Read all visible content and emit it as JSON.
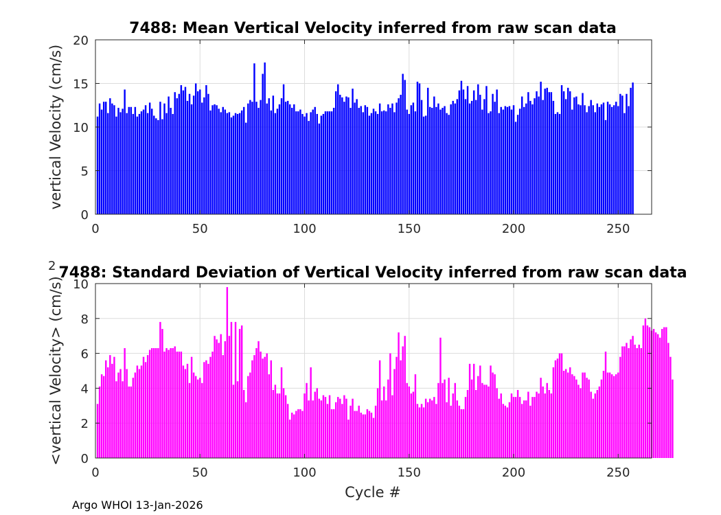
{
  "footer": "Argo WHOI 13-Jan-2026",
  "chart_data": [
    {
      "type": "bar",
      "title": "7488: Mean Vertical Velocity inferred from raw scan data",
      "xlabel": "",
      "ylabel": "vertical Velocity (cm/s)",
      "xlim": [
        0,
        266
      ],
      "ylim": [
        0,
        20
      ],
      "xticks": [
        0,
        50,
        100,
        150,
        200,
        250
      ],
      "yticks": [
        0,
        5,
        10,
        15,
        20
      ],
      "grid": true,
      "color": "#0000ff",
      "x_start": 1,
      "values": [
        11.2,
        12.7,
        12.0,
        12.9,
        12.9,
        11.6,
        13.3,
        12.7,
        12.5,
        11.2,
        12.2,
        11.7,
        12.1,
        14.3,
        11.6,
        12.3,
        12.3,
        11.5,
        12.3,
        11.2,
        11.5,
        11.8,
        12.0,
        12.5,
        11.6,
        12.8,
        12.1,
        11.3,
        11.0,
        10.8,
        12.9,
        10.9,
        12.7,
        11.6,
        13.5,
        12.2,
        11.5,
        14.0,
        13.3,
        13.8,
        14.8,
        14.2,
        14.6,
        13.0,
        13.8,
        12.6,
        13.6,
        15.0,
        14.1,
        14.3,
        12.8,
        13.4,
        14.8,
        13.8,
        11.9,
        12.5,
        12.6,
        12.5,
        12.1,
        11.7,
        12.3,
        12.0,
        11.6,
        11.7,
        11.1,
        11.3,
        11.6,
        11.5,
        11.6,
        11.9,
        12.3,
        10.5,
        12.7,
        13.1,
        12.9,
        17.3,
        12.9,
        12.2,
        13.1,
        16.1,
        17.4,
        12.7,
        13.3,
        11.9,
        13.6,
        11.6,
        12.1,
        12.6,
        13.3,
        14.9,
        12.9,
        13.0,
        12.6,
        12.2,
        12.6,
        11.8,
        11.8,
        12.0,
        11.5,
        11.2,
        11.6,
        10.7,
        11.7,
        12.0,
        12.3,
        11.5,
        10.4,
        11.3,
        11.5,
        11.8,
        11.8,
        11.8,
        11.8,
        12.2,
        14.1,
        14.9,
        13.7,
        13.4,
        12.9,
        13.5,
        13.4,
        12.2,
        14.4,
        12.8,
        13.2,
        12.2,
        12.4,
        11.7,
        12.5,
        12.3,
        11.3,
        11.6,
        12.1,
        11.8,
        11.5,
        12.7,
        11.8,
        11.9,
        11.8,
        12.6,
        12.2,
        12.7,
        11.7,
        12.8,
        13.3,
        13.7,
        16.1,
        15.4,
        12.0,
        11.5,
        12.5,
        12.8,
        11.8,
        15.2,
        15.0,
        13.1,
        11.2,
        11.3,
        14.5,
        12.3,
        12.2,
        13.5,
        12.3,
        12.7,
        12.0,
        12.2,
        12.4,
        11.6,
        11.4,
        12.6,
        13.0,
        12.7,
        13.2,
        14.2,
        15.3,
        14.3,
        13.2,
        14.7,
        12.7,
        13.0,
        14.2,
        13.1,
        14.9,
        13.7,
        12.0,
        13.2,
        14.7,
        11.6,
        11.8,
        13.8,
        12.9,
        14.3,
        11.6,
        12.3,
        12.0,
        12.4,
        12.3,
        12.4,
        12.0,
        12.5,
        10.6,
        11.4,
        12.1,
        13.5,
        12.3,
        12.7,
        14.0,
        13.0,
        12.6,
        13.3,
        14.1,
        13.5,
        15.2,
        13.1,
        14.4,
        14.5,
        14.0,
        14.0,
        13.0,
        11.5,
        11.7,
        11.5,
        14.8,
        14.1,
        13.2,
        14.5,
        14.1,
        12.0,
        13.4,
        13.5,
        12.6,
        12.5,
        13.9,
        12.5,
        11.7,
        12.4,
        13.1,
        12.5,
        11.7,
        12.7,
        12.3,
        12.6,
        12.8,
        10.8,
        12.9,
        12.6,
        12.3,
        12.5,
        12.9,
        12.4,
        13.8,
        13.6,
        11.6,
        13.8,
        12.4,
        14.5,
        15.1
      ]
    },
    {
      "type": "bar",
      "title": "7488: Standard Deviation of Vertical Velocity inferred from raw scan data",
      "xlabel": "Cycle #",
      "ylabel": "<vertical Velocity> (cm/s)",
      "ylabel_superscript": "2",
      "xlim": [
        0,
        266
      ],
      "ylim": [
        0,
        10
      ],
      "xticks": [
        0,
        50,
        100,
        150,
        200,
        250
      ],
      "yticks": [
        0,
        2,
        4,
        6,
        8,
        10
      ],
      "grid": true,
      "color": "#ff00ff",
      "x_start": 1,
      "values": [
        3.1,
        4.1,
        4.8,
        4.7,
        5.6,
        5.2,
        5.9,
        5.4,
        5.8,
        4.4,
        4.9,
        5.1,
        4.4,
        6.3,
        5.1,
        4.1,
        4.1,
        4.6,
        4.9,
        5.3,
        5.1,
        5.3,
        5.8,
        5.5,
        5.9,
        6.2,
        6.3,
        6.3,
        6.3,
        6.3,
        7.8,
        7.4,
        6.1,
        6.3,
        6.2,
        6.3,
        6.3,
        6.4,
        6.1,
        6.1,
        6.1,
        5.3,
        5.1,
        5.4,
        4.3,
        5.8,
        4.9,
        4.7,
        4.5,
        4.6,
        4.3,
        5.5,
        5.6,
        5.4,
        5.8,
        6.1,
        7.0,
        6.8,
        6.6,
        7.1,
        5.9,
        6.7,
        9.8,
        7.0,
        7.8,
        4.2,
        7.8,
        4.4,
        7.4,
        7.6,
        3.9,
        3.2,
        4.7,
        4.9,
        5.6,
        5.9,
        6.3,
        6.7,
        6.1,
        5.7,
        5.8,
        6.0,
        4.8,
        5.6,
        3.9,
        4.2,
        3.7,
        3.7,
        5.2,
        4.0,
        3.6,
        3.1,
        2.2,
        2.6,
        2.5,
        2.7,
        2.8,
        2.8,
        2.7,
        3.7,
        4.3,
        3.3,
        5.2,
        3.3,
        3.8,
        4.0,
        3.4,
        3.3,
        3.6,
        3.5,
        3.1,
        3.6,
        2.8,
        2.8,
        3.2,
        3.5,
        3.4,
        3.1,
        3.6,
        3.4,
        2.2,
        3.0,
        3.4,
        2.7,
        2.7,
        3.0,
        2.6,
        2.5,
        2.5,
        2.8,
        2.7,
        2.6,
        2.3,
        3.0,
        4.0,
        5.6,
        3.3,
        4.1,
        3.3,
        4.5,
        6.0,
        3.6,
        5.1,
        5.8,
        7.2,
        5.6,
        6.4,
        7.0,
        4.3,
        4.1,
        3.7,
        3.8,
        4.8,
        3.1,
        2.9,
        3.1,
        2.9,
        3.4,
        3.2,
        3.4,
        3.3,
        3.5,
        3.1,
        4.3,
        6.9,
        4.3,
        4.5,
        3.2,
        4.6,
        3.0,
        3.7,
        4.3,
        3.3,
        3.0,
        2.8,
        2.8,
        3.5,
        3.9,
        5.4,
        4.5,
        5.4,
        3.9,
        4.7,
        5.3,
        4.3,
        4.2,
        4.2,
        4.1,
        5.3,
        4.9,
        4.8,
        4.0,
        3.4,
        3.7,
        3.1,
        3.0,
        2.9,
        3.2,
        3.7,
        3.5,
        3.5,
        3.9,
        3.5,
        3.1,
        3.3,
        3.3,
        3.8,
        3.0,
        3.5,
        3.5,
        3.8,
        3.7,
        4.6,
        4.1,
        3.7,
        4.3,
        3.9,
        3.7,
        5.2,
        5.6,
        5.7,
        6.0,
        6.0,
        5.0,
        5.1,
        4.9,
        5.2,
        4.8,
        4.7,
        4.5,
        4.2,
        4.0,
        4.9,
        4.9,
        4.6,
        4.5,
        3.8,
        3.4,
        3.7,
        3.9,
        4.1,
        4.5,
        5.0,
        6.1,
        4.9,
        4.9,
        4.8,
        4.7,
        4.8,
        4.9,
        5.8,
        6.4,
        6.4,
        6.6,
        6.3,
        6.8,
        7.0,
        6.5,
        6.3,
        6.5,
        6.3,
        7.6,
        8.0,
        7.6,
        7.5,
        7.3,
        7.4,
        7.2,
        7.1,
        6.9,
        7.4,
        7.5,
        7.5,
        6.6,
        5.8,
        4.5
      ]
    }
  ]
}
